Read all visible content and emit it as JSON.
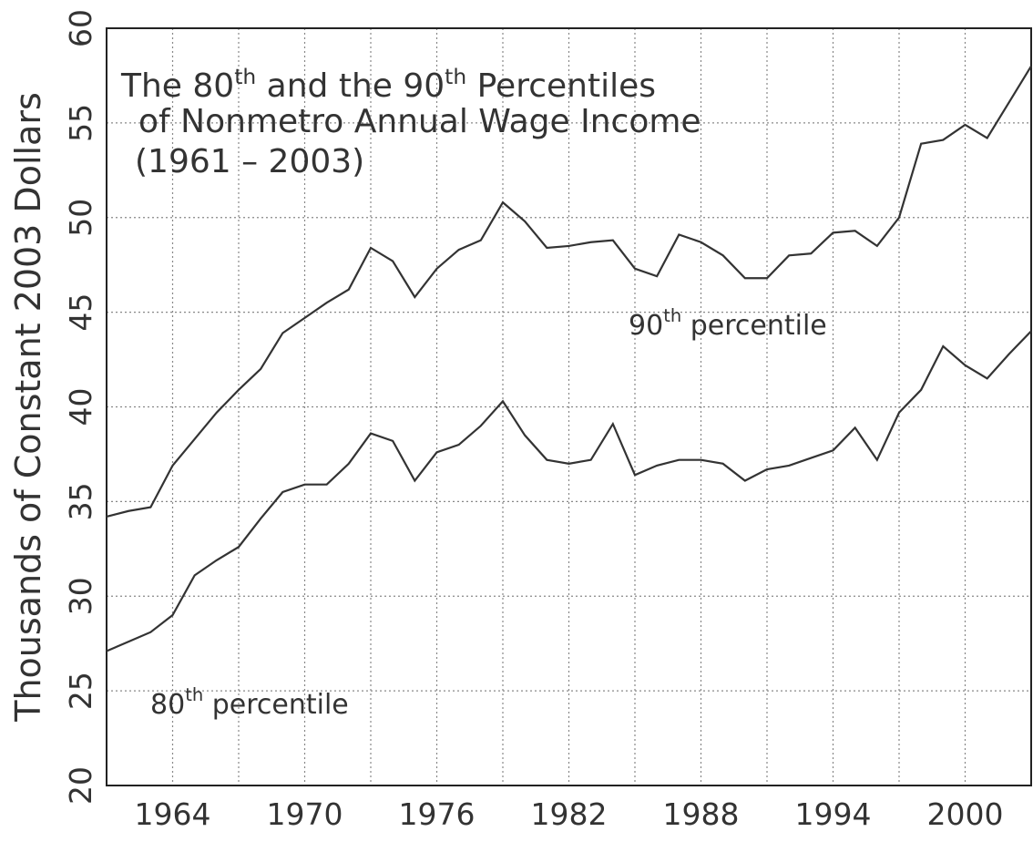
{
  "chart_data": {
    "type": "line",
    "title": [
      [
        "The 80",
        "th",
        " and the 90",
        "th",
        " Percentiles"
      ],
      [
        "of Nonmetro Annual Wage Income"
      ],
      [
        "(1961 – 2003)"
      ]
    ],
    "y_label": "Thousands of Constant 2003 Dollars",
    "x": [
      1961,
      1962,
      1963,
      1964,
      1965,
      1966,
      1967,
      1968,
      1969,
      1970,
      1971,
      1972,
      1973,
      1974,
      1975,
      1976,
      1977,
      1978,
      1979,
      1980,
      1981,
      1982,
      1983,
      1984,
      1985,
      1986,
      1987,
      1988,
      1989,
      1990,
      1991,
      1992,
      1993,
      1994,
      1995,
      1996,
      1997,
      1998,
      1999,
      2000,
      2001,
      2002,
      2003
    ],
    "series": [
      {
        "name": [
          "90",
          "th",
          " percentile"
        ],
        "color": "#333333",
        "values": [
          34.2,
          34.5,
          34.7,
          36.9,
          38.3,
          39.7,
          40.9,
          42.0,
          43.9,
          44.7,
          45.5,
          46.2,
          48.4,
          47.7,
          45.8,
          47.3,
          48.3,
          48.8,
          50.8,
          49.8,
          48.4,
          48.5,
          48.7,
          48.8,
          47.3,
          46.9,
          49.1,
          48.7,
          48.0,
          46.8,
          46.8,
          48.0,
          48.1,
          49.2,
          49.3,
          48.5,
          50.0,
          53.9,
          54.1,
          54.9,
          54.2,
          56.1,
          58.0
        ]
      },
      {
        "name": [
          "80",
          "th",
          " percentile"
        ],
        "color": "#333333",
        "values": [
          27.1,
          27.6,
          28.1,
          29.0,
          31.1,
          31.9,
          32.6,
          34.1,
          35.5,
          35.9,
          35.9,
          37.0,
          38.6,
          38.2,
          36.1,
          37.6,
          38.0,
          39.0,
          40.3,
          38.5,
          37.2,
          37.0,
          37.2,
          39.1,
          36.4,
          36.9,
          37.2,
          37.2,
          37.0,
          36.1,
          36.7,
          36.9,
          37.3,
          37.7,
          38.9,
          37.2,
          39.7,
          40.9,
          43.2,
          42.2,
          41.5,
          42.8,
          44.0
        ]
      }
    ],
    "xlim": [
      1961,
      2003
    ],
    "xticks": [
      1964,
      1970,
      1976,
      1982,
      1988,
      1994,
      2000
    ],
    "xminorticks": [
      1967,
      1973,
      1979,
      1985,
      1991,
      1997
    ],
    "ylim": [
      20,
      60
    ],
    "yticks": [
      20,
      25,
      30,
      35,
      40,
      45,
      50,
      55,
      60
    ],
    "grid": true
  }
}
